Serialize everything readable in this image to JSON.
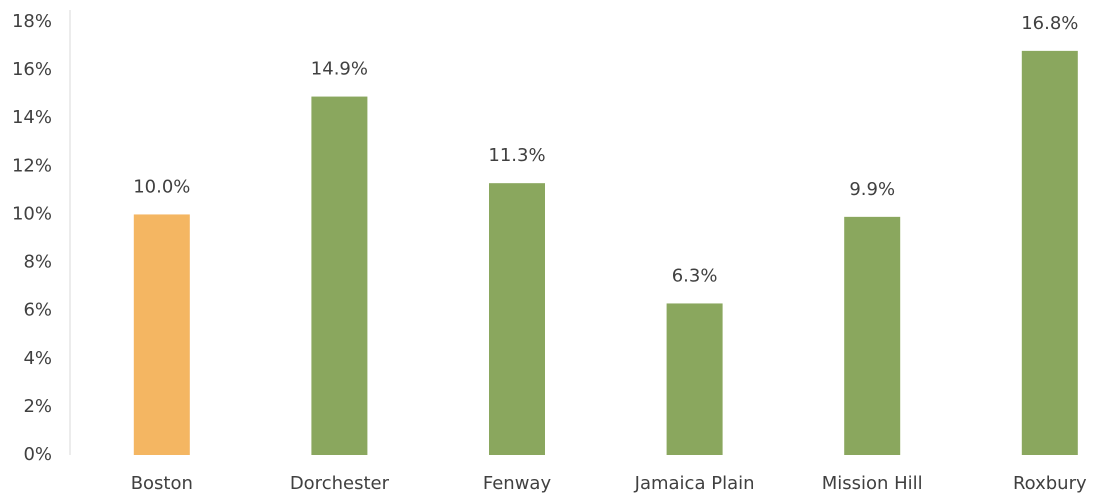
{
  "chart_data": {
    "type": "bar",
    "categories": [
      "Boston",
      "Dorchester",
      "Fenway",
      "Jamaica Plain",
      "Mission Hill",
      "Roxbury"
    ],
    "values": [
      10.0,
      14.9,
      11.3,
      6.3,
      9.9,
      16.8
    ],
    "value_labels": [
      "10.0%",
      "14.9%",
      "11.3%",
      "6.3%",
      "9.9%",
      "16.8%"
    ],
    "colors": [
      "#f4b662",
      "#8aa75e",
      "#8aa75e",
      "#8aa75e",
      "#8aa75e",
      "#8aa75e"
    ],
    "ylim": [
      0,
      18
    ],
    "yticks": [
      {
        "value": 0,
        "label": "0%"
      },
      {
        "value": 2,
        "label": "2%"
      },
      {
        "value": 4,
        "label": "4%"
      },
      {
        "value": 6,
        "label": "6%"
      },
      {
        "value": 8,
        "label": "8%"
      },
      {
        "value": 10,
        "label": "10%"
      },
      {
        "value": 12,
        "label": "12%"
      },
      {
        "value": 14,
        "label": "14%"
      },
      {
        "value": 16,
        "label": "16%"
      },
      {
        "value": 18,
        "label": "18%"
      }
    ],
    "grid": false
  }
}
